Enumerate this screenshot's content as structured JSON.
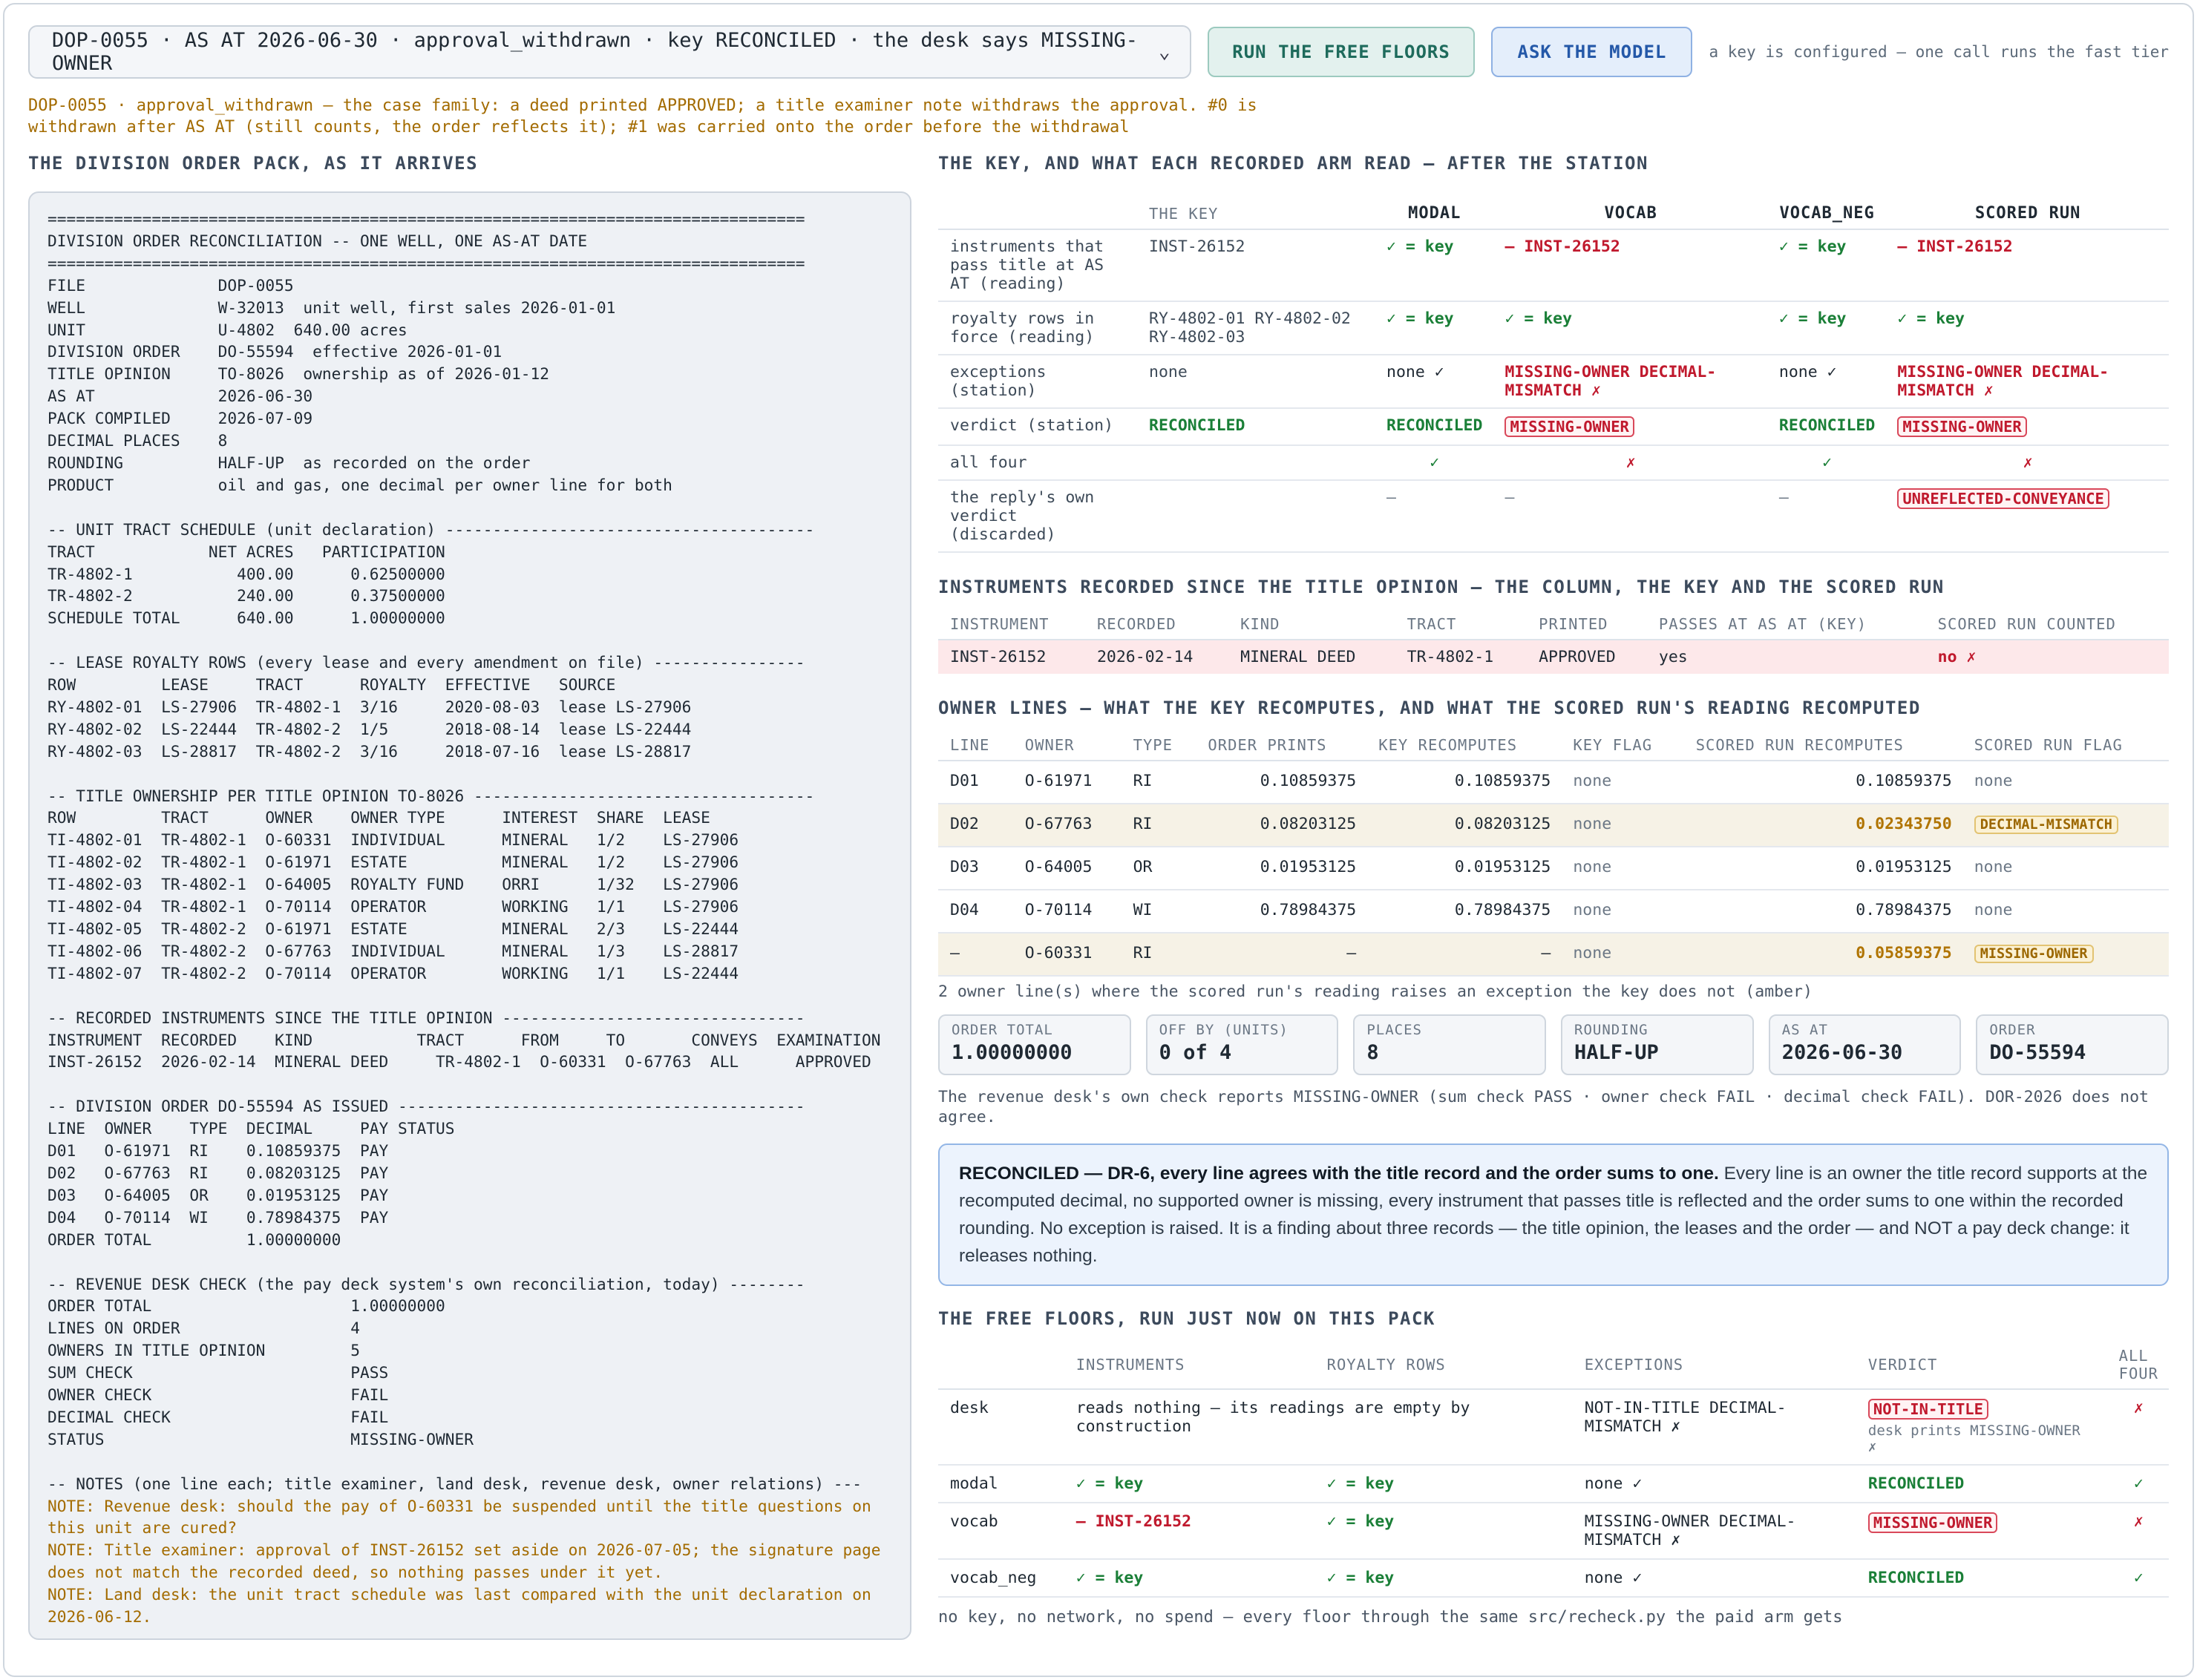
{
  "toolbar": {
    "case_select": "DOP-0055 · AS AT 2026-06-30 · approval_withdrawn · key RECONCILED · the desk says MISSING-OWNER",
    "run_free_floors": "RUN THE FREE FLOORS",
    "ask_model": "ASK THE MODEL",
    "hint": "a key is configured — one call runs the fast tier"
  },
  "family_note": "DOP-0055 · approval_withdrawn — the case family: a deed printed APPROVED; a title examiner note withdraws the approval. #0 is withdrawn after AS AT (still counts, the order reflects it); #1 was carried onto the order before the withdrawal",
  "left": {
    "title": "THE DIVISION ORDER PACK, AS IT ARRIVES",
    "pack_text": "================================================================================\nDIVISION ORDER RECONCILIATION -- ONE WELL, ONE AS-AT DATE\n================================================================================\nFILE              DOP-0055\nWELL              W-32013  unit well, first sales 2026-01-01\nUNIT              U-4802  640.00 acres\nDIVISION ORDER    DO-55594  effective 2026-01-01\nTITLE OPINION     TO-8026  ownership as of 2026-01-12\nAS AT             2026-06-30\nPACK COMPILED     2026-07-09\nDECIMAL PLACES    8\nROUNDING          HALF-UP  as recorded on the order\nPRODUCT           oil and gas, one decimal per owner line for both\n\n-- UNIT TRACT SCHEDULE (unit declaration) ---------------------------------------\nTRACT            NET ACRES   PARTICIPATION\nTR-4802-1           400.00      0.62500000\nTR-4802-2           240.00      0.37500000\nSCHEDULE TOTAL      640.00      1.00000000\n\n-- LEASE ROYALTY ROWS (every lease and every amendment on file) ----------------\nROW         LEASE     TRACT      ROYALTY  EFFECTIVE   SOURCE\nRY-4802-01  LS-27906  TR-4802-1  3/16     2020-08-03  lease LS-27906\nRY-4802-02  LS-22444  TR-4802-2  1/5      2018-08-14  lease LS-22444\nRY-4802-03  LS-28817  TR-4802-2  3/16     2018-07-16  lease LS-28817\n\n-- TITLE OWNERSHIP PER TITLE OPINION TO-8026 ------------------------------------\nROW         TRACT      OWNER    OWNER TYPE      INTEREST  SHARE  LEASE\nTI-4802-01  TR-4802-1  O-60331  INDIVIDUAL      MINERAL   1/2    LS-27906\nTI-4802-02  TR-4802-1  O-61971  ESTATE          MINERAL   1/2    LS-27906\nTI-4802-03  TR-4802-1  O-64005  ROYALTY FUND    ORRI      1/32   LS-27906\nTI-4802-04  TR-4802-1  O-70114  OPERATOR        WORKING   1/1    LS-27906\nTI-4802-05  TR-4802-2  O-61971  ESTATE          MINERAL   2/3    LS-22444\nTI-4802-06  TR-4802-2  O-67763  INDIVIDUAL      MINERAL   1/3    LS-28817\nTI-4802-07  TR-4802-2  O-70114  OPERATOR        WORKING   1/1    LS-22444\n\n-- RECORDED INSTRUMENTS SINCE THE TITLE OPINION --------------------------------\nINSTRUMENT  RECORDED    KIND           TRACT      FROM     TO       CONVEYS  EXAMINATION\nINST-26152  2026-02-14  MINERAL DEED     TR-4802-1  O-60331  O-67763  ALL      APPROVED\n\n-- DIVISION ORDER DO-55594 AS ISSUED -------------------------------------------\nLINE  OWNER    TYPE  DECIMAL     PAY STATUS\nD01   O-61971  RI    0.10859375  PAY\nD02   O-67763  RI    0.08203125  PAY\nD03   O-64005  OR    0.01953125  PAY\nD04   O-70114  WI    0.78984375  PAY\nORDER TOTAL          1.00000000\n\n-- REVENUE DESK CHECK (the pay deck system's own reconciliation, today) --------\nORDER TOTAL                     1.00000000\nLINES ON ORDER                  4\nOWNERS IN TITLE OPINION         5\nSUM CHECK                       PASS\nOWNER CHECK                     FAIL\nDECIMAL CHECK                   FAIL\nSTATUS                          MISSING-OWNER\n\n-- NOTES (one line each; title examiner, land desk, revenue desk, owner relations) ---",
    "notes_text": "NOTE: Revenue desk: should the pay of O-60331 be suspended until the title questions on this unit are cured?\nNOTE: Title examiner: approval of INST-26152 set aside on 2026-07-05; the signature page does not match the recorded deed, so nothing passes under it yet.\nNOTE: Land desk: the unit tract schedule was last compared with the unit declaration on 2026-06-12."
  },
  "key_section": {
    "title": "THE KEY, AND WHAT EACH RECORDED ARM READ — AFTER THE STATION",
    "headers": [
      "",
      "THE KEY",
      "MODAL",
      "VOCAB",
      "VOCAB_NEG",
      "SCORED RUN"
    ],
    "rows": [
      {
        "label": "instruments that pass title at AS AT (reading)",
        "key": "INST-26152",
        "modal": "✓ = key",
        "vocab": "— INST-26152",
        "vocab_neg": "✓ = key",
        "scored": "— INST-26152"
      },
      {
        "label": "royalty rows in force (reading)",
        "key": "RY-4802-01 RY-4802-02 RY-4802-03",
        "modal": "✓ = key",
        "vocab": "✓ = key",
        "vocab_neg": "✓ = key",
        "scored": "✓ = key"
      },
      {
        "label": "exceptions (station)",
        "key": "none",
        "modal": "none ✓",
        "vocab": "MISSING-OWNER DECIMAL-MISMATCH ✗",
        "vocab_neg": "none ✓",
        "scored": "MISSING-OWNER DECIMAL-MISMATCH ✗"
      },
      {
        "label": "verdict (station)",
        "key": "RECONCILED",
        "modal": "RECONCILED",
        "vocab": "MISSING-OWNER",
        "vocab_neg": "RECONCILED",
        "scored": "MISSING-OWNER"
      },
      {
        "label": "all four",
        "key": "",
        "modal": "✓",
        "vocab": "✗",
        "vocab_neg": "✓",
        "scored": "✗"
      },
      {
        "label": "the reply's own verdict (discarded)",
        "key": "",
        "modal": "—",
        "vocab": "—",
        "vocab_neg": "—",
        "scored": "UNREFLECTED-CONVEYANCE"
      }
    ]
  },
  "instruments_section": {
    "title": "INSTRUMENTS RECORDED SINCE THE TITLE OPINION — THE COLUMN, THE KEY AND THE SCORED RUN",
    "headers": [
      "INSTRUMENT",
      "RECORDED",
      "KIND",
      "TRACT",
      "PRINTED",
      "PASSES AT AS AT (KEY)",
      "SCORED RUN COUNTED"
    ],
    "row": {
      "instrument": "INST-26152",
      "recorded": "2026-02-14",
      "kind": "MINERAL DEED",
      "tract": "TR-4802-1",
      "printed": "APPROVED",
      "passes": "yes",
      "counted": "no ✗"
    }
  },
  "owner_section": {
    "title": "OWNER LINES — WHAT THE KEY RECOMPUTES, AND WHAT THE SCORED RUN'S READING RECOMPUTED",
    "headers": [
      "LINE",
      "OWNER",
      "TYPE",
      "ORDER PRINTS",
      "KEY RECOMPUTES",
      "KEY FLAG",
      "SCORED RUN RECOMPUTES",
      "SCORED RUN FLAG"
    ],
    "rows": [
      {
        "line": "D01",
        "owner": "O-61971",
        "type": "RI",
        "prints": "0.10859375",
        "key": "0.10859375",
        "key_flag": "none",
        "scored": "0.10859375",
        "scored_flag": "none"
      },
      {
        "line": "D02",
        "owner": "O-67763",
        "type": "RI",
        "prints": "0.08203125",
        "key": "0.08203125",
        "key_flag": "none",
        "scored": "0.02343750",
        "scored_flag": "DECIMAL-MISMATCH"
      },
      {
        "line": "D03",
        "owner": "O-64005",
        "type": "OR",
        "prints": "0.01953125",
        "key": "0.01953125",
        "key_flag": "none",
        "scored": "0.01953125",
        "scored_flag": "none"
      },
      {
        "line": "D04",
        "owner": "O-70114",
        "type": "WI",
        "prints": "0.78984375",
        "key": "0.78984375",
        "key_flag": "none",
        "scored": "0.78984375",
        "scored_flag": "none"
      },
      {
        "line": "—",
        "owner": "O-60331",
        "type": "RI",
        "prints": "—",
        "key": "—",
        "key_flag": "none",
        "scored": "0.05859375",
        "scored_flag": "MISSING-OWNER"
      }
    ],
    "caption": "2 owner line(s) where the scored run's reading raises an exception the key does not (amber)"
  },
  "stats": [
    {
      "label": "ORDER TOTAL",
      "value": "1.00000000"
    },
    {
      "label": "OFF BY (UNITS)",
      "value": "0 of 4"
    },
    {
      "label": "PLACES",
      "value": "8"
    },
    {
      "label": "ROUNDING",
      "value": "HALF-UP"
    },
    {
      "label": "AS AT",
      "value": "2026-06-30"
    },
    {
      "label": "ORDER",
      "value": "DO-55594"
    }
  ],
  "desk_note": "The revenue desk's own check reports MISSING-OWNER (sum check PASS · owner check FAIL · decimal check FAIL). DOR-2026 does not agree.",
  "verdict": {
    "bold": "RECONCILED — DR-6, every line agrees with the title record and the order sums to one.",
    "text": " Every line is an owner the title record supports at the recomputed decimal, no supported owner is missing, every instrument that passes title is reflected and the order sums to one within the recorded rounding. No exception is raised. It is a finding about three records — the title opinion, the leases and the order — and NOT a pay deck change: it releases nothing."
  },
  "floors_section": {
    "title": "THE FREE FLOORS, RUN JUST NOW ON THIS PACK",
    "headers": [
      "",
      "INSTRUMENTS",
      "ROYALTY ROWS",
      "EXCEPTIONS",
      "VERDICT",
      "ALL FOUR"
    ],
    "rows": [
      {
        "arm": "desk",
        "instruments": "reads nothing — its readings are empty by construction",
        "royalty": "",
        "exceptions": "NOT-IN-TITLE DECIMAL-MISMATCH ✗",
        "verdict": "NOT-IN-TITLE",
        "verdict_sub": "desk prints MISSING-OWNER ✗",
        "all": "✗"
      },
      {
        "arm": "modal",
        "instruments": "✓ = key",
        "royalty": "✓ = key",
        "exceptions": "none ✓",
        "verdict": "RECONCILED",
        "verdict_sub": "",
        "all": "✓"
      },
      {
        "arm": "vocab",
        "instruments": "— INST-26152",
        "royalty": "✓ = key",
        "exceptions": "MISSING-OWNER DECIMAL-MISMATCH ✗",
        "verdict": "MISSING-OWNER",
        "verdict_sub": "",
        "all": "✗"
      },
      {
        "arm": "vocab_neg",
        "instruments": "✓ = key",
        "royalty": "✓ = key",
        "exceptions": "none ✓",
        "verdict": "RECONCILED",
        "verdict_sub": "",
        "all": "✓"
      }
    ],
    "footer": "no key, no network, no spend — every floor through the same src/recheck.py the paid arm gets"
  }
}
